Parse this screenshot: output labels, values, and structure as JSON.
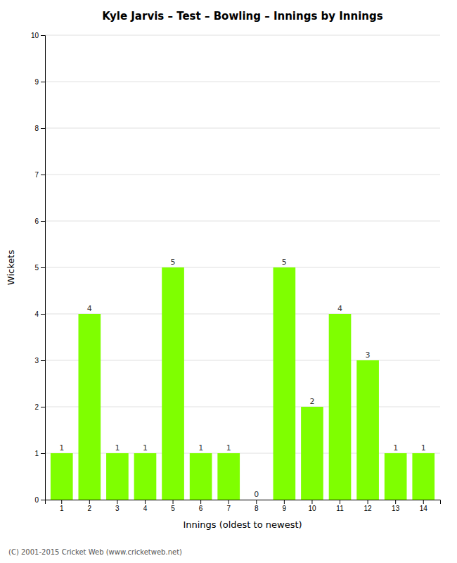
{
  "chart_data": {
    "type": "bar",
    "title": "Kyle Jarvis – Test – Bowling – Innings by Innings",
    "x_label": "Innings (oldest to newest)",
    "y_label": "Wickets",
    "categories": [
      "1",
      "2",
      "3",
      "4",
      "5",
      "6",
      "7",
      "8",
      "9",
      "10",
      "11",
      "12",
      "13",
      "14"
    ],
    "values": [
      1,
      4,
      1,
      1,
      5,
      1,
      1,
      0,
      5,
      2,
      4,
      3,
      1,
      1
    ],
    "color": "#7fff00",
    "ylim": [
      0,
      10
    ],
    "yticks": [
      0,
      1,
      2,
      3,
      4,
      5,
      6,
      7,
      8,
      9,
      10
    ],
    "grid": true,
    "data_labels": true,
    "annotations": [
      "(C) 2001-2015 Cricket Web (www.cricketweb.net)"
    ]
  }
}
